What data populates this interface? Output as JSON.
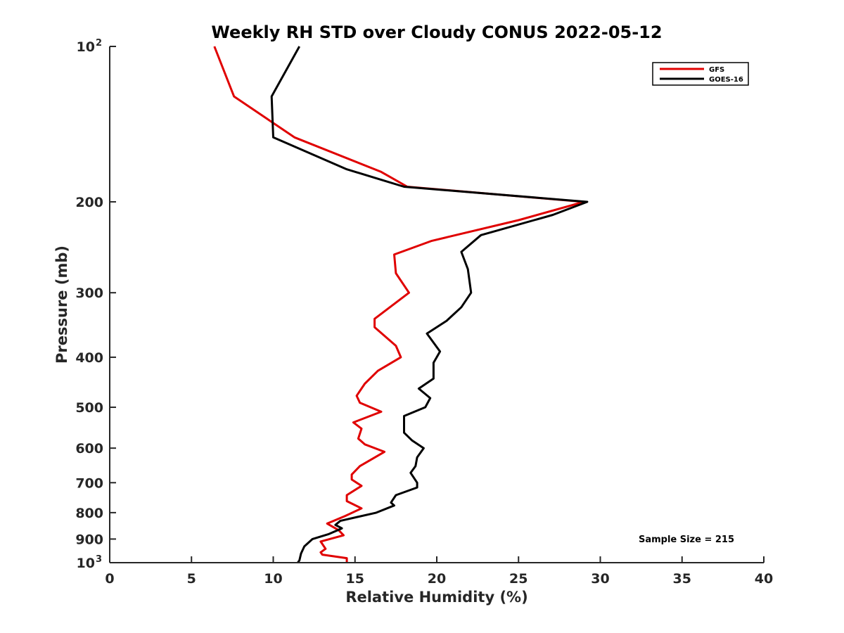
{
  "chart_data": {
    "type": "line",
    "title": "Weekly RH STD over Cloudy CONUS 2022-05-12",
    "xlabel": "Relative Humidity (%)",
    "ylabel": "Pressure (mb)",
    "xlim": [
      0,
      40
    ],
    "ylim": [
      100,
      1000
    ],
    "y_scale": "log",
    "y_reversed": true,
    "x_ticks": [
      "0",
      "5",
      "10",
      "15",
      "20",
      "25",
      "30",
      "35",
      "40"
    ],
    "y_ticks": [
      {
        "value": 100,
        "base": "10",
        "exp": "2"
      },
      {
        "value": 200,
        "label": "200"
      },
      {
        "value": 300,
        "label": "300"
      },
      {
        "value": 400,
        "label": "400"
      },
      {
        "value": 500,
        "label": "500"
      },
      {
        "value": 600,
        "label": "600"
      },
      {
        "value": 700,
        "label": "700"
      },
      {
        "value": 800,
        "label": "800"
      },
      {
        "value": 900,
        "label": "900"
      },
      {
        "value": 1000,
        "base": "10",
        "exp": "3"
      }
    ],
    "grid": false,
    "legend_position": "top-right",
    "annotation": "Sample Size = 215",
    "series": [
      {
        "name": "GFS",
        "color": "#e00000",
        "points": [
          [
            6.4,
            100
          ],
          [
            7.6,
            125
          ],
          [
            11.3,
            150
          ],
          [
            16.6,
            175
          ],
          [
            18.2,
            187
          ],
          [
            29.0,
            200
          ],
          [
            25.0,
            217
          ],
          [
            19.7,
            238
          ],
          [
            17.4,
            253
          ],
          [
            17.5,
            275
          ],
          [
            18.3,
            300
          ],
          [
            16.2,
            337
          ],
          [
            16.2,
            350
          ],
          [
            17.5,
            380
          ],
          [
            17.8,
            400
          ],
          [
            16.4,
            425
          ],
          [
            15.6,
            450
          ],
          [
            15.1,
            475
          ],
          [
            15.3,
            490
          ],
          [
            16.6,
            510
          ],
          [
            14.9,
            535
          ],
          [
            15.4,
            550
          ],
          [
            15.2,
            575
          ],
          [
            15.6,
            590
          ],
          [
            16.8,
            610
          ],
          [
            15.3,
            650
          ],
          [
            14.8,
            675
          ],
          [
            14.8,
            690
          ],
          [
            15.4,
            710
          ],
          [
            14.5,
            740
          ],
          [
            14.5,
            760
          ],
          [
            15.4,
            785
          ],
          [
            14.4,
            812
          ],
          [
            13.3,
            840
          ],
          [
            14.0,
            865
          ],
          [
            14.3,
            885
          ],
          [
            12.9,
            910
          ],
          [
            13.2,
            940
          ],
          [
            12.9,
            955
          ],
          [
            13.0,
            965
          ],
          [
            14.5,
            980
          ],
          [
            14.5,
            1000
          ]
        ]
      },
      {
        "name": "GOES-16",
        "color": "#000000",
        "points": [
          [
            11.6,
            100
          ],
          [
            9.9,
            125
          ],
          [
            10.0,
            150
          ],
          [
            14.5,
            173
          ],
          [
            18.0,
            187
          ],
          [
            29.2,
            200
          ],
          [
            27.1,
            212
          ],
          [
            22.7,
            232
          ],
          [
            21.5,
            250
          ],
          [
            21.9,
            270
          ],
          [
            22.1,
            300
          ],
          [
            21.5,
            320
          ],
          [
            20.6,
            340
          ],
          [
            19.4,
            360
          ],
          [
            20.2,
            390
          ],
          [
            19.8,
            410
          ],
          [
            19.8,
            440
          ],
          [
            18.9,
            460
          ],
          [
            19.6,
            480
          ],
          [
            19.3,
            500
          ],
          [
            18.0,
            520
          ],
          [
            18.0,
            560
          ],
          [
            18.5,
            580
          ],
          [
            19.2,
            600
          ],
          [
            18.8,
            625
          ],
          [
            18.7,
            650
          ],
          [
            18.4,
            670
          ],
          [
            18.8,
            700
          ],
          [
            18.8,
            715
          ],
          [
            17.5,
            740
          ],
          [
            17.2,
            765
          ],
          [
            17.4,
            775
          ],
          [
            16.3,
            800
          ],
          [
            14.1,
            830
          ],
          [
            13.8,
            845
          ],
          [
            14.2,
            858
          ],
          [
            13.4,
            880
          ],
          [
            12.4,
            900
          ],
          [
            11.9,
            930
          ],
          [
            11.7,
            960
          ],
          [
            11.6,
            990
          ],
          [
            11.5,
            1000
          ]
        ]
      }
    ]
  }
}
